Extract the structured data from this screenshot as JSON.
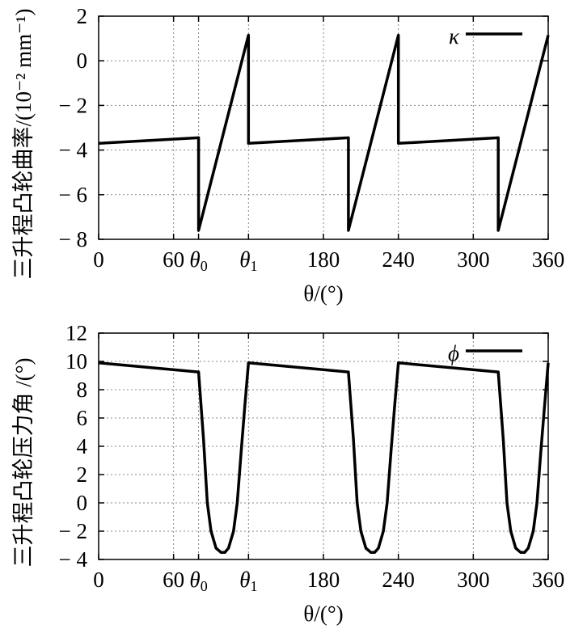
{
  "chart_data": [
    {
      "type": "line",
      "ylabel": "三升程凸轮曲率/(10⁻² mm⁻¹)",
      "xlabel": "θ/(°)",
      "xlim": [
        0,
        360
      ],
      "ylim": [
        -8,
        2
      ],
      "grid": true,
      "legend_position": "top-right",
      "xticks": [
        {
          "v": 0,
          "t": "0"
        },
        {
          "v": 60,
          "t": "60"
        },
        {
          "v": 80,
          "t": "θ0"
        },
        {
          "v": 120,
          "t": "θ1"
        },
        {
          "v": 180,
          "t": "180"
        },
        {
          "v": 240,
          "t": "240"
        },
        {
          "v": 300,
          "t": "300"
        },
        {
          "v": 360,
          "t": "360"
        }
      ],
      "yticks": [
        {
          "v": 2,
          "t": "2"
        },
        {
          "v": 0,
          "t": "0"
        },
        {
          "v": -2,
          "t": "− 2"
        },
        {
          "v": -4,
          "t": "− 4"
        },
        {
          "v": -6,
          "t": "− 6"
        },
        {
          "v": -8,
          "t": "− 8"
        }
      ],
      "series": [
        {
          "name": "κ",
          "color": "#000000",
          "x": [
            0,
            80,
            80,
            120,
            120,
            200,
            200,
            240,
            240,
            320,
            320,
            360
          ],
          "y": [
            -3.7,
            -3.45,
            -7.6,
            1.15,
            -3.7,
            -3.45,
            -7.6,
            1.15,
            -3.7,
            -3.45,
            -7.6,
            1.15
          ]
        }
      ]
    },
    {
      "type": "line",
      "ylabel": "三升程凸轮压力角 /(°)",
      "xlabel": "θ/(°)",
      "xlim": [
        0,
        360
      ],
      "ylim": [
        -4,
        12
      ],
      "grid": true,
      "legend_position": "top-right",
      "xticks": [
        {
          "v": 0,
          "t": "0"
        },
        {
          "v": 60,
          "t": "60"
        },
        {
          "v": 80,
          "t": "θ0"
        },
        {
          "v": 120,
          "t": "θ1"
        },
        {
          "v": 180,
          "t": "180"
        },
        {
          "v": 240,
          "t": "240"
        },
        {
          "v": 300,
          "t": "300"
        },
        {
          "v": 360,
          "t": "360"
        }
      ],
      "yticks": [
        {
          "v": 12,
          "t": "12"
        },
        {
          "v": 10,
          "t": "10"
        },
        {
          "v": 8,
          "t": "8"
        },
        {
          "v": 6,
          "t": "6"
        },
        {
          "v": 4,
          "t": "4"
        },
        {
          "v": 2,
          "t": "2"
        },
        {
          "v": 0,
          "t": "0"
        },
        {
          "v": -2,
          "t": "− 2"
        },
        {
          "v": -4,
          "t": "− 4"
        }
      ],
      "series": [
        {
          "name": "ϕ",
          "color": "#000000",
          "x": [
            0,
            80,
            84,
            87,
            90,
            94,
            98,
            101,
            104,
            108,
            111,
            114,
            117,
            120,
            200,
            204,
            207,
            210,
            214,
            218,
            221,
            224,
            228,
            231,
            234,
            237,
            240,
            320,
            324,
            327,
            330,
            334,
            338,
            341,
            344,
            348,
            351,
            354,
            357,
            360
          ],
          "y": [
            9.9,
            9.25,
            4.5,
            0,
            -2,
            -3.2,
            -3.5,
            -3.5,
            -3.2,
            -2,
            0,
            3.5,
            6.8,
            9.9,
            9.25,
            4.5,
            0,
            -2,
            -3.2,
            -3.5,
            -3.5,
            -3.2,
            -2,
            0,
            3.5,
            6.8,
            9.9,
            9.25,
            4.5,
            0,
            -2,
            -3.2,
            -3.5,
            -3.5,
            -3.2,
            -2,
            0,
            3.5,
            6.8,
            9.9
          ]
        }
      ]
    }
  ]
}
